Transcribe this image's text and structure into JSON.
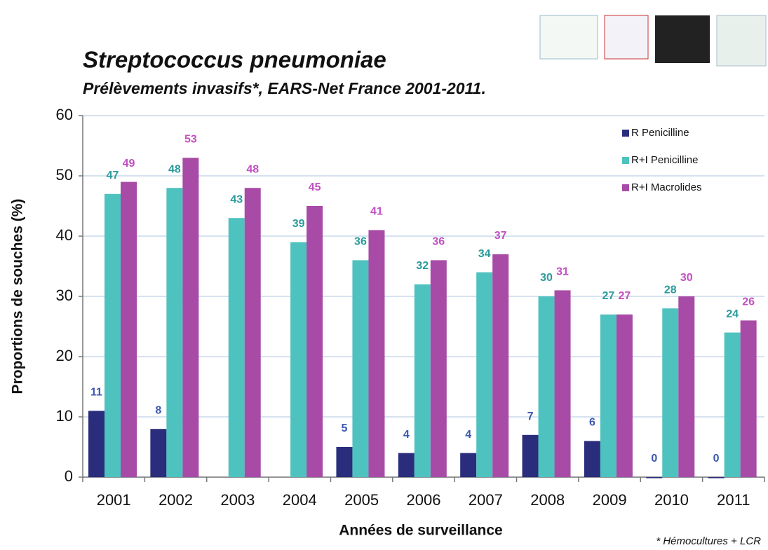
{
  "chart_data": {
    "type": "bar",
    "title": "Streptococcus  pneumoniae",
    "subtitle": "Prélèvements invasifs*, EARS-Net France 2001-2011.",
    "x_label": "Années de surveillance",
    "y_label": "Proportions de souches (%)",
    "footnote": "* Hémocultures  + LCR",
    "categories": [
      "2001",
      "2002",
      "2003",
      "2004",
      "2005",
      "2006",
      "2007",
      "2008",
      "2009",
      "2010",
      "2011"
    ],
    "series": [
      {
        "name": "R Penicilline",
        "color": "#2a2d7c",
        "label_color": "#3b58b0",
        "values": [
          11,
          8,
          null,
          null,
          5,
          4,
          4,
          7,
          6,
          0,
          0
        ]
      },
      {
        "name": "R+I Penicilline",
        "color": "#4ec2bf",
        "label_color": "#2a9a9a",
        "values": [
          47,
          48,
          43,
          39,
          36,
          32,
          34,
          30,
          27,
          28,
          24
        ]
      },
      {
        "name": "R+I Macrolides",
        "color": "#a84ba6",
        "label_color": "#c24fc2",
        "values": [
          49,
          53,
          48,
          45,
          41,
          36,
          37,
          31,
          27,
          30,
          26
        ]
      }
    ],
    "ylim": [
      0,
      60
    ],
    "yticks": [
      0,
      10,
      20,
      30,
      40,
      50,
      60
    ],
    "grid": true
  }
}
